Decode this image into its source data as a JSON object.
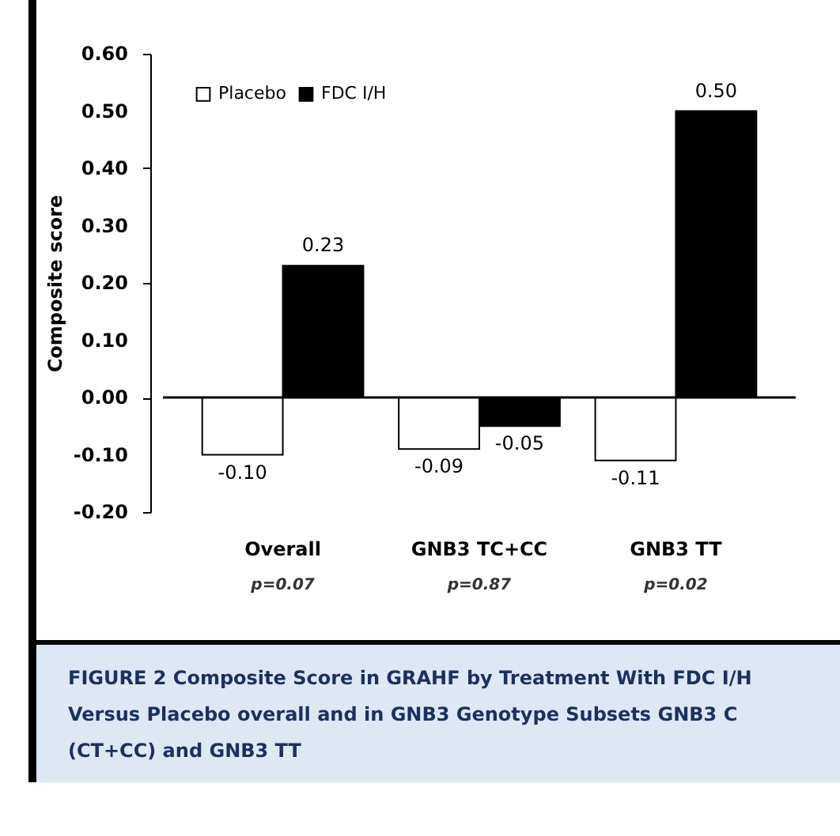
{
  "chart_data": {
    "type": "bar",
    "title": "FIGURE 2 Composite Score in GRAHF by Treatment With FDC I/H Versus Placebo overall and in GNB3 Genotype Subsets GNB3 C (CT+CC) and GNB3 TT",
    "ylabel": "Composite score",
    "categories": [
      "Overall",
      "GNB3 TC+CC",
      "GNB3 TT"
    ],
    "series": [
      {
        "name": "Placebo",
        "color": "#ffffff",
        "values": [
          -0.1,
          -0.09,
          -0.11
        ],
        "value_labels": [
          "-0.10",
          "-0.09",
          "-0.11"
        ]
      },
      {
        "name": "FDC I/H",
        "color": "#000000",
        "values": [
          0.23,
          -0.05,
          0.5
        ],
        "value_labels": [
          "0.23",
          "-0.05",
          "0.50"
        ]
      }
    ],
    "ylim": [
      -0.2,
      0.6
    ],
    "yticks": [
      {
        "value": -0.2,
        "label": "-0.20"
      },
      {
        "value": -0.1,
        "label": "-0.10"
      },
      {
        "value": 0,
        "label": "0.00"
      },
      {
        "value": 0.1,
        "label": "0.10"
      },
      {
        "value": 0.2,
        "label": "0.20"
      },
      {
        "value": 0.3,
        "label": "0.30"
      },
      {
        "value": 0.4,
        "label": "0.40"
      },
      {
        "value": 0.5,
        "label": "0.50"
      },
      {
        "value": 0.6,
        "label": "0.60"
      }
    ],
    "legend": "top left",
    "ref_lines": [
      {
        "axis": "y",
        "value": 0,
        "color": "#000000"
      }
    ],
    "annotations": [
      "p=0.07",
      "p=0.87",
      "p=0.02"
    ]
  }
}
